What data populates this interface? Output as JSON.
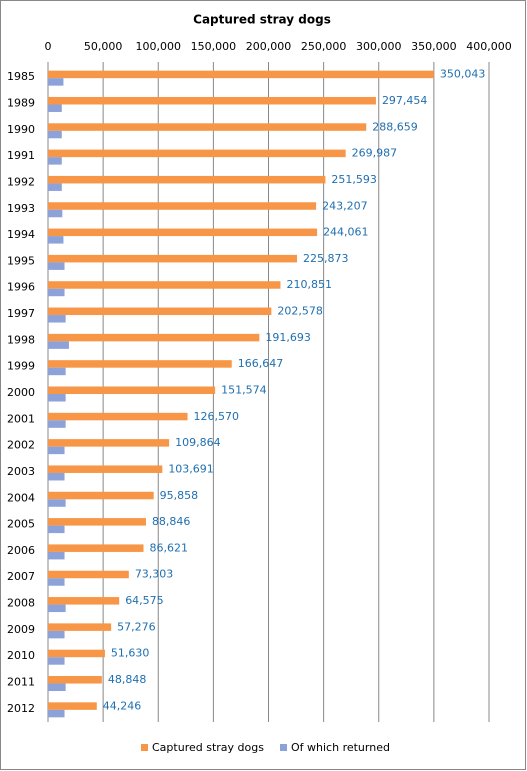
{
  "chart_data": {
    "type": "hbar",
    "title": "Captured stray dogs",
    "categories": [
      "1985",
      "1989",
      "1990",
      "1991",
      "1992",
      "1993",
      "1994",
      "1995",
      "1996",
      "1997",
      "1998",
      "1999",
      "2000",
      "2001",
      "2002",
      "2003",
      "2004",
      "2005",
      "2006",
      "2007",
      "2008",
      "2009",
      "2010",
      "2011",
      "2012"
    ],
    "series": [
      {
        "name": "Captured stray dogs",
        "color": "#f79646",
        "values": [
          350043,
          297454,
          288659,
          269987,
          251593,
          243207,
          244061,
          225873,
          210851,
          202578,
          191693,
          166647,
          151574,
          126570,
          109864,
          103691,
          95858,
          88846,
          86621,
          73303,
          64575,
          57276,
          51630,
          48848,
          44246
        ],
        "value_labels": [
          "350,043",
          "297,454",
          "288,659",
          "269,987",
          "251,593",
          "243,207",
          "244,061",
          "225,873",
          "210,851",
          "202,578",
          "191,693",
          "166,647",
          "151,574",
          "126,570",
          "109,864",
          "103,691",
          "95,858",
          "88,846",
          "86,621",
          "73,303",
          "64,575",
          "57,276",
          "51,630",
          "48,848",
          "44,246"
        ]
      },
      {
        "name": "Of which returned",
        "color": "#8da2d9",
        "values": [
          14000,
          12500,
          12500,
          12500,
          12500,
          13000,
          14000,
          15000,
          15000,
          16000,
          19000,
          16000,
          16000,
          16000,
          15000,
          15000,
          16000,
          15000,
          15000,
          15000,
          16000,
          15000,
          15000,
          16000,
          15000
        ]
      }
    ],
    "xlim": [
      0,
      400000
    ],
    "xticks": [
      0,
      {
        "value": 50000,
        "label": "50,000"
      },
      {
        "value": 100000,
        "label": "100,000"
      },
      {
        "value": 150000,
        "label": "150,000"
      },
      {
        "value": 200000,
        "label": "200,000"
      },
      {
        "value": 250000,
        "label": "250,000"
      },
      {
        "value": 300000,
        "label": "300,000"
      },
      {
        "value": 350000,
        "label": "350,000"
      },
      {
        "value": 400000,
        "label": "400,000"
      }
    ],
    "grid": true,
    "legend": "bottom",
    "value_label_color": "#1f6fb0"
  }
}
